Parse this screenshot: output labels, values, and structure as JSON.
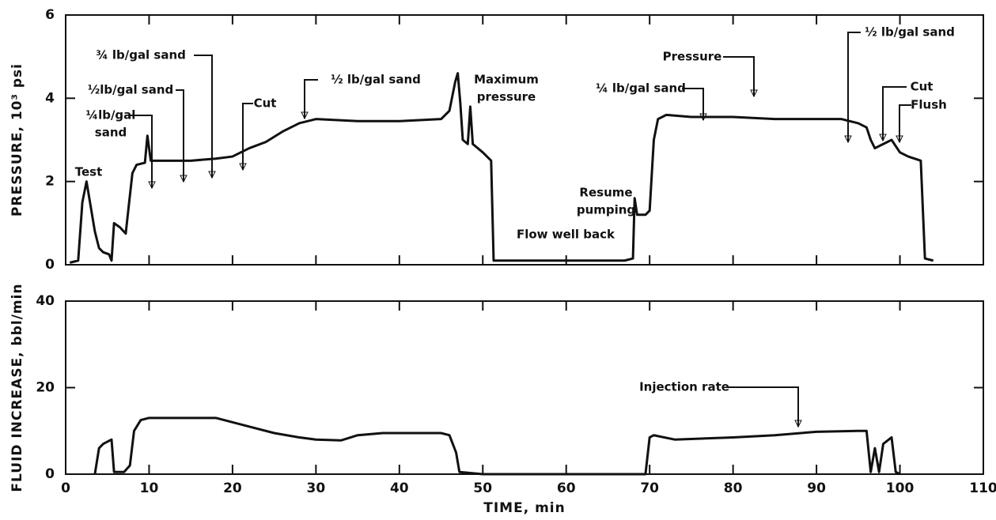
{
  "chart_data": [
    {
      "type": "line",
      "y_label": "PRESSURE, 10³ psi",
      "x": [
        0.5,
        1.5,
        2,
        2.5,
        3,
        3.5,
        4,
        4.5,
        5.2,
        5.5,
        5.8,
        6.5,
        7.2,
        7.5,
        8,
        8.5,
        9.5,
        9.8,
        10.2,
        12,
        15,
        18,
        20,
        22,
        24,
        26,
        28,
        30,
        35,
        40,
        45,
        46,
        46.7,
        47,
        47.3,
        47.6,
        48.2,
        48.5,
        48.8,
        50,
        51,
        51.3,
        60,
        67,
        68,
        68.2,
        68.5,
        69.5,
        70,
        70.5,
        71,
        72,
        75,
        80,
        85,
        90,
        93,
        95,
        96,
        96.5,
        97,
        98,
        99,
        100,
        101,
        102.5,
        103,
        104
      ],
      "series": [
        {
          "name": "Pressure",
          "color": "#111111",
          "values": [
            0.05,
            0.1,
            1.5,
            2.0,
            1.4,
            0.8,
            0.4,
            0.3,
            0.25,
            0.1,
            1.0,
            0.9,
            0.75,
            1.3,
            2.2,
            2.4,
            2.45,
            3.1,
            2.5,
            2.5,
            2.5,
            2.55,
            2.6,
            2.8,
            2.95,
            3.2,
            3.4,
            3.5,
            3.45,
            3.45,
            3.5,
            3.7,
            4.4,
            4.6,
            3.9,
            3.0,
            2.9,
            3.8,
            2.9,
            2.7,
            2.5,
            0.1,
            0.1,
            0.1,
            0.15,
            1.6,
            1.2,
            1.2,
            1.3,
            3.0,
            3.5,
            3.6,
            3.55,
            3.55,
            3.5,
            3.5,
            3.5,
            3.4,
            3.3,
            3.0,
            2.8,
            2.9,
            3.0,
            2.7,
            2.6,
            2.5,
            0.15,
            0.1
          ]
        }
      ],
      "xlim": [
        0,
        110
      ],
      "xticks": [
        0,
        10,
        20,
        30,
        40,
        50,
        60,
        70,
        80,
        90,
        100,
        110
      ],
      "ylim": [
        0,
        6
      ],
      "yticks": [
        0,
        2,
        4,
        6
      ],
      "annotations": [
        [
          "Test"
        ],
        [
          "¼lb/gal",
          "sand"
        ],
        [
          "½lb/gal sand"
        ],
        [
          "¾ lb/gal sand"
        ],
        [
          "Cut"
        ],
        [
          "½ lb/gal sand"
        ],
        [
          "Maximum",
          "pressure"
        ],
        [
          "Flow well back"
        ],
        [
          "Resume",
          "pumping"
        ],
        [
          "¼ lb/gal sand"
        ],
        [
          "Pressure"
        ],
        [
          "½ lb/gal sand"
        ],
        [
          "Cut"
        ],
        [
          "Flush"
        ]
      ]
    },
    {
      "type": "line",
      "y_label": "FLUID INCREASE, bbl/min",
      "x_label": "TIME, min",
      "x": [
        3.5,
        4,
        4.5,
        5.5,
        5.8,
        7,
        7.7,
        8.2,
        9,
        10,
        15,
        18,
        19,
        22,
        25,
        28,
        30,
        33,
        35,
        38,
        40,
        45,
        46,
        46.8,
        47.2,
        50,
        60,
        69.5,
        70,
        70.5,
        73,
        80,
        85,
        90,
        95,
        96,
        96.5,
        97,
        97.5,
        98,
        99,
        99.5,
        100
      ],
      "series": [
        {
          "name": "Injection rate",
          "color": "#111111",
          "values": [
            0,
            6,
            7,
            8,
            0.5,
            0.5,
            2,
            10,
            12.5,
            13,
            13,
            13,
            12.5,
            11,
            9.5,
            8.5,
            8,
            7.8,
            9,
            9.5,
            9.5,
            9.5,
            9,
            5,
            0.5,
            0,
            0,
            0,
            8.5,
            9,
            8,
            8.5,
            9,
            9.8,
            10,
            10,
            0.5,
            6,
            0.5,
            7,
            8.5,
            0.5,
            0
          ]
        }
      ],
      "xlim": [
        0,
        110
      ],
      "xticks": [
        0,
        10,
        20,
        30,
        40,
        50,
        60,
        70,
        80,
        90,
        100,
        110
      ],
      "ylim": [
        0,
        40
      ],
      "yticks": [
        0,
        20,
        40
      ],
      "annotations": [
        [
          "Injection rate"
        ]
      ]
    }
  ]
}
